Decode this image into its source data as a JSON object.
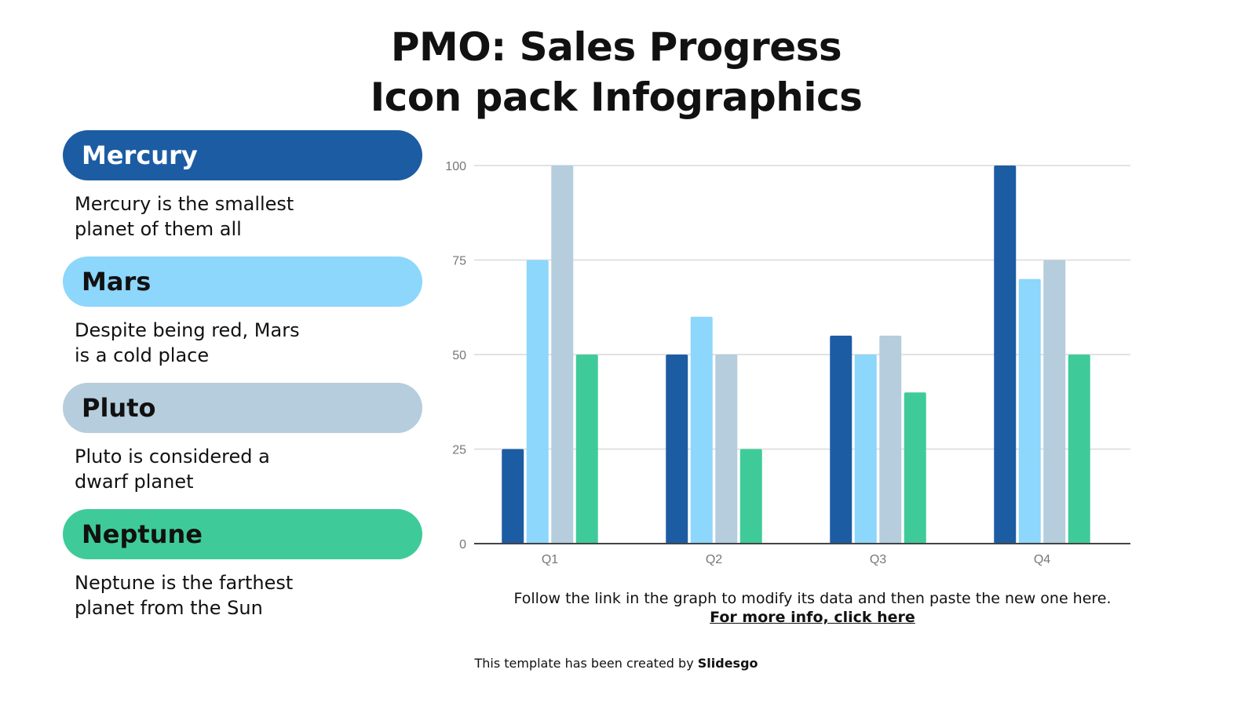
{
  "title": {
    "text_a": "PMO: Sales Progress",
    "text_b": "Icon pack Infographics"
  },
  "legend_items": [
    {
      "label": "Mercury",
      "desc_1": "Mercury is the smallest",
      "desc_2": "planet of them all",
      "color": "#1c5ca3",
      "text_color": "#ffffff"
    },
    {
      "label": "Mars",
      "desc_1": "Despite being red, Mars",
      "desc_2": "is a cold place",
      "color": "#8dd6fc",
      "text_color": "#111111"
    },
    {
      "label": "Pluto",
      "desc_1": "Pluto is considered a",
      "desc_2": "dwarf planet",
      "color": "#b5cddd",
      "text_color": "#111111"
    },
    {
      "label": "Neptune",
      "desc_1": "Neptune is the farthest",
      "desc_2": "planet from the Sun",
      "color": "#3fcb99",
      "text_color": "#111111"
    }
  ],
  "chart_data": {
    "type": "bar",
    "categories": [
      "Q1",
      "Q2",
      "Q3",
      "Q4"
    ],
    "series": [
      {
        "name": "Mercury",
        "values": [
          25,
          50,
          55,
          100
        ],
        "color": "#1c5ca3"
      },
      {
        "name": "Mars",
        "values": [
          75,
          60,
          50,
          70
        ],
        "color": "#8dd6fc"
      },
      {
        "name": "Pluto",
        "values": [
          100,
          50,
          55,
          75
        ],
        "color": "#b5cddd"
      },
      {
        "name": "Neptune",
        "values": [
          50,
          25,
          40,
          50
        ],
        "color": "#3fcb99"
      }
    ],
    "yticks": [
      0,
      25,
      50,
      75,
      100
    ],
    "ylim": [
      0,
      100
    ],
    "grid": true,
    "xlabel": "",
    "ylabel": "",
    "title": ""
  },
  "note": {
    "text": "Follow the link in the graph to modify its data and then paste the new one here.",
    "link": "For more info, click here"
  },
  "credit": {
    "prefix": "This template has been created by ",
    "brand": "Slidesgo"
  }
}
